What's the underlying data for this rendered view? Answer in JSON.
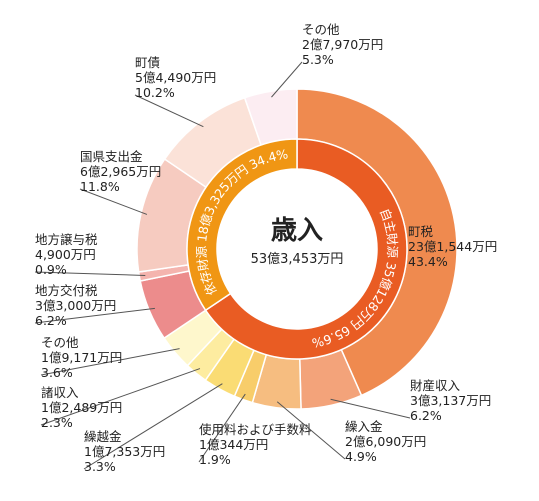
{
  "chart_data": {
    "type": "pie",
    "title": "歳入",
    "total": "53億3,453万円",
    "outer": [
      {
        "name": "町税",
        "amount": "23億1,544万円",
        "percent": 43.4,
        "pct_label": "43.4%",
        "color": "#ef8a4f"
      },
      {
        "name": "財産収入",
        "amount": "3億3,137万円",
        "percent": 6.2,
        "pct_label": "6.2%",
        "color": "#f3a37a"
      },
      {
        "name": "繰入金",
        "amount": "2億6,090万円",
        "percent": 4.9,
        "pct_label": "4.9%",
        "color": "#f6bd80"
      },
      {
        "name": "使用料および手数料",
        "amount": "1億344万円",
        "percent": 1.9,
        "pct_label": "1.9%",
        "color": "#f8cd6a"
      },
      {
        "name": "繰越金",
        "amount": "1億7,353万円",
        "percent": 3.3,
        "pct_label": "3.3%",
        "color": "#fadc74"
      },
      {
        "name": "諸収入",
        "amount": "1億2,489万円",
        "percent": 2.3,
        "pct_label": "2.3%",
        "color": "#fdeca0"
      },
      {
        "name": "その他",
        "amount": "1億9,171万円",
        "percent": 3.6,
        "pct_label": "3.6%",
        "color": "#fef7cc"
      },
      {
        "name": "地方交付税",
        "amount": "3億3,000万円",
        "percent": 6.2,
        "pct_label": "6.2%",
        "color": "#ec8c8c"
      },
      {
        "name": "地方譲与税",
        "amount": "4,900万円",
        "percent": 0.9,
        "pct_label": "0.9%",
        "color": "#f4b4ae"
      },
      {
        "name": "国県支出金",
        "amount": "6億2,965万円",
        "percent": 11.8,
        "pct_label": "11.8%",
        "color": "#f6cbc0"
      },
      {
        "name": "町債",
        "amount": "5億4,490万円",
        "percent": 10.2,
        "pct_label": "10.2%",
        "color": "#fbe2d8"
      },
      {
        "name": "その他",
        "amount": "2億7,970万円",
        "percent": 5.3,
        "pct_label": "5.3%",
        "color": "#fcedf2"
      }
    ],
    "inner": [
      {
        "label": "自主財源 35億128万円 65.6%",
        "percent": 65.6,
        "color": "#e95c23"
      },
      {
        "label": "依存財源 18億3,325万円 34.4%",
        "percent": 34.4,
        "color": "#f09614"
      }
    ]
  },
  "colors": {
    "line": "#555555",
    "separator": "#ffffff"
  }
}
